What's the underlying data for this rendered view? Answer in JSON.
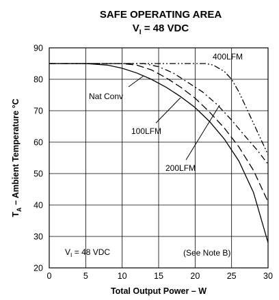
{
  "chart_data": {
    "type": "line",
    "title": "SAFE OPERATING AREA",
    "subtitle": {
      "prefix": "V",
      "sub": "I",
      "suffix": " = 48 VDC"
    },
    "xlabel": "Total Output Power – W",
    "ylabel": {
      "prefix": "T",
      "sub": "A",
      "suffix": " – Ambient Temperature °C"
    },
    "xlim": [
      0,
      30
    ],
    "ylim": [
      20,
      90
    ],
    "xticks": [
      0,
      5,
      10,
      15,
      20,
      25,
      30
    ],
    "yticks": [
      20,
      30,
      40,
      50,
      60,
      70,
      80,
      90
    ],
    "grid": true,
    "series": [
      {
        "name": "Nat Conv",
        "style": "solid",
        "x": [
          0,
          5,
          8,
          10,
          12,
          14,
          16,
          18,
          20,
          22,
          24,
          26,
          28,
          30
        ],
        "y": [
          85,
          85,
          84.5,
          83.5,
          82,
          80,
          77.5,
          74.5,
          71,
          66.5,
          61,
          54,
          44,
          28
        ]
      },
      {
        "name": "100LFM",
        "style": "longdash",
        "x": [
          0,
          10,
          12,
          14,
          16,
          18,
          20,
          22,
          24,
          26,
          28,
          30
        ],
        "y": [
          85,
          85,
          84.5,
          83,
          80.5,
          77.5,
          74,
          69.5,
          64.5,
          58.5,
          51,
          41
        ]
      },
      {
        "name": "200LFM",
        "style": "dashdot",
        "x": [
          0,
          13,
          15,
          17,
          19,
          21,
          23,
          25,
          27,
          28.5,
          30
        ],
        "y": [
          85,
          85,
          84,
          82,
          79,
          76,
          72,
          67,
          61.5,
          57.5,
          53
        ]
      },
      {
        "name": "400LFM",
        "style": "dashdotdot",
        "x": [
          0,
          21.5,
          22.5,
          24,
          25,
          26,
          27,
          28,
          29,
          30
        ],
        "y": [
          85,
          85,
          84.5,
          82.5,
          80,
          76,
          71,
          66,
          61,
          56
        ]
      }
    ],
    "annotations": [
      {
        "text": "Nat Conv"
      },
      {
        "text": "100LFM"
      },
      {
        "text": "200LFM"
      },
      {
        "text": "400LFM"
      },
      {
        "prefix": "V",
        "sub": "I",
        "suffix": " = 48 VDC"
      },
      {
        "text": "(See Note B)"
      }
    ]
  }
}
